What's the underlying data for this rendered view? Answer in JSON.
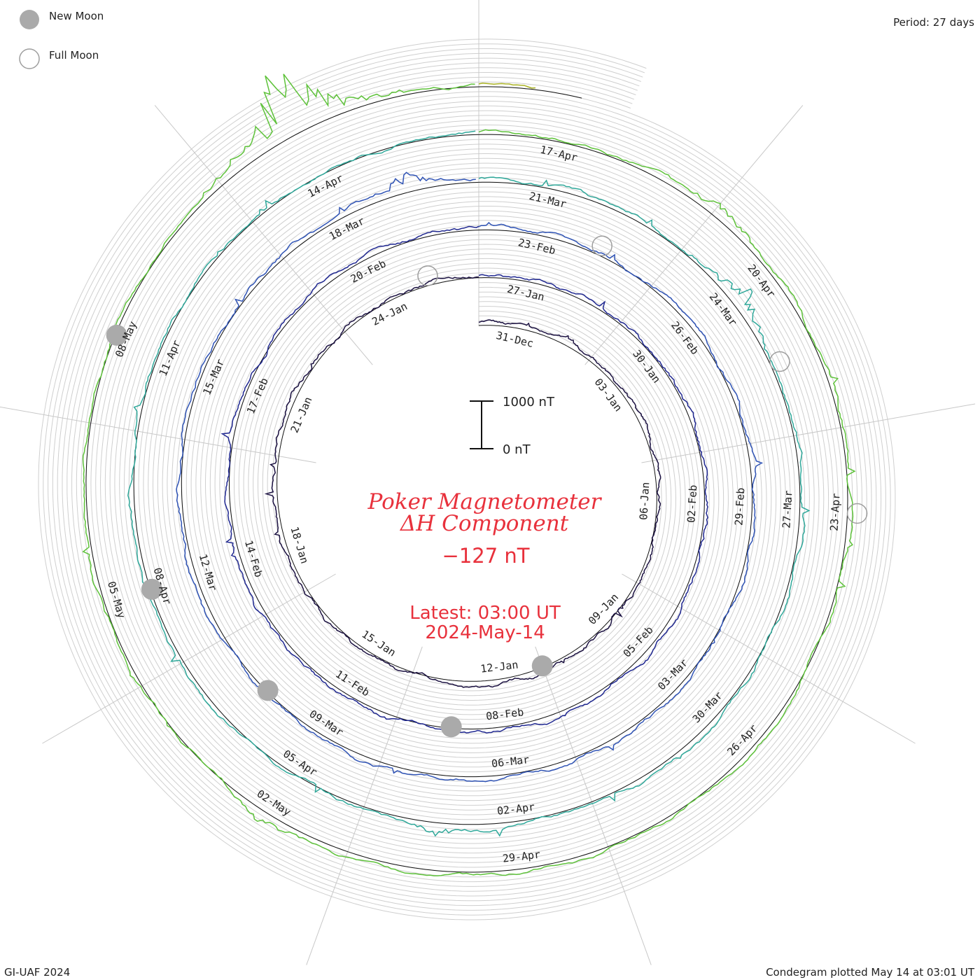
{
  "legend": {
    "new_moon": "New Moon",
    "full_moon": "Full Moon",
    "new_moon_color": "#aaaaaa",
    "full_moon_color": "#9e9e9e"
  },
  "period": "Period: 27 days",
  "credit": "GI-UAF 2024",
  "plotted": "Condegram plotted May 14 at 03:01 UT",
  "center": {
    "title_line1": "Poker Magnetometer",
    "title_line2": "ΔH Component",
    "value": "−127 nT",
    "latest_line1": "Latest: 03:00 UT",
    "latest_line2": "2024-May-14",
    "accent_color": "#e8313c"
  },
  "scale_bar": {
    "top_label": "1000 nT",
    "bottom_label": "0 nT",
    "top_value_nT": 1000,
    "bottom_value_nT": 0
  },
  "chart_data": {
    "type": "line",
    "period_days": 27,
    "y_unit": "nT",
    "date_labels": [
      "31-Dec",
      "03-Jan",
      "06-Jan",
      "09-Jan",
      "12-Jan",
      "15-Jan",
      "18-Jan",
      "21-Jan",
      "24-Jan",
      "27-Jan",
      "30-Jan",
      "02-Feb",
      "05-Feb",
      "08-Feb",
      "11-Feb",
      "14-Feb",
      "17-Feb",
      "20-Feb",
      "23-Feb",
      "26-Feb",
      "29-Feb",
      "03-Mar",
      "06-Mar",
      "09-Mar",
      "12-Mar",
      "15-Mar",
      "18-Mar",
      "21-Mar",
      "24-Mar",
      "27-Mar",
      "30-Mar",
      "02-Apr",
      "05-Apr",
      "08-Apr",
      "11-Apr",
      "14-Apr",
      "17-Apr",
      "20-Apr",
      "23-Apr",
      "26-Apr",
      "29-Apr",
      "02-May",
      "05-May",
      "08-May"
    ],
    "series_colors": [
      "#1a1040",
      "#1f2790",
      "#2f53b5",
      "#2fa89a",
      "#5ec23a",
      "#a9b222",
      "#b8861c",
      "#bd5a1a",
      "#b01810"
    ],
    "moon_phases": {
      "new_moon": [
        "11-Jan",
        "09-Feb",
        "10-Mar",
        "08-Apr",
        "08-May"
      ],
      "full_moon": [
        "25-Jan",
        "24-Feb",
        "25-Mar",
        "23-Apr"
      ]
    },
    "activity": [
      {
        "date": "19-Mar",
        "peak_nT": 300
      },
      {
        "date": "24-Mar",
        "peak_nT": 450
      },
      {
        "date": "03-Apr",
        "peak_nT": 180
      },
      {
        "date": "19-Apr",
        "peak_nT": 220
      },
      {
        "date": "02-May",
        "peak_nT": 200
      },
      {
        "date": "11-May",
        "peak_nT": 1400
      }
    ],
    "latest_value_nT": -127
  }
}
